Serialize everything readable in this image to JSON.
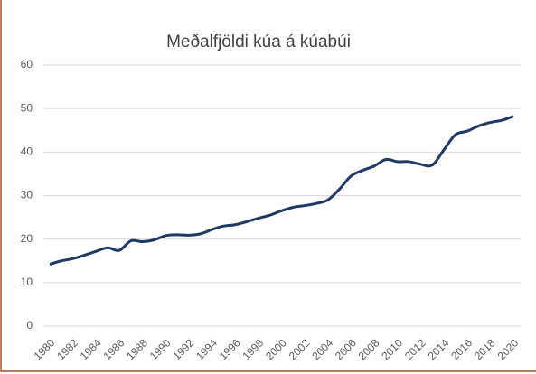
{
  "chart_data": {
    "type": "line",
    "title": "Meðalfjöldi kúa á kúabúi",
    "x": [
      1980,
      1981,
      1982,
      1983,
      1984,
      1985,
      1986,
      1987,
      1988,
      1989,
      1990,
      1991,
      1992,
      1993,
      1994,
      1995,
      1996,
      1997,
      1998,
      1999,
      2000,
      2001,
      2002,
      2003,
      2004,
      2005,
      2006,
      2007,
      2008,
      2009,
      2010,
      2011,
      2012,
      2013,
      2014,
      2015,
      2016,
      2017,
      2018,
      2019,
      2020
    ],
    "series": [
      {
        "name": "Meðalfjöldi",
        "color": "#203864",
        "values": [
          14.2,
          15,
          15.5,
          16.3,
          17.2,
          18,
          17.4,
          19.6,
          19.4,
          19.8,
          20.8,
          21,
          20.9,
          21.2,
          22.2,
          23,
          23.3,
          24,
          24.8,
          25.5,
          26.5,
          27.3,
          27.7,
          28.2,
          29,
          31.5,
          34.5,
          35.8,
          36.8,
          38.3,
          37.8,
          37.8,
          37.2,
          37,
          40.5,
          44,
          44.8,
          46,
          46.8,
          47.3,
          48.2
        ]
      }
    ],
    "xlim": [
      1980,
      2020
    ],
    "xticks": [
      1980,
      1982,
      1984,
      1986,
      1988,
      1990,
      1992,
      1994,
      1996,
      1998,
      2000,
      2002,
      2004,
      2006,
      2008,
      2010,
      2012,
      2014,
      2016,
      2018,
      2020
    ],
    "ylim": [
      0,
      60
    ],
    "yticks": [
      0,
      10,
      20,
      30,
      40,
      50,
      60
    ],
    "grid": true
  }
}
